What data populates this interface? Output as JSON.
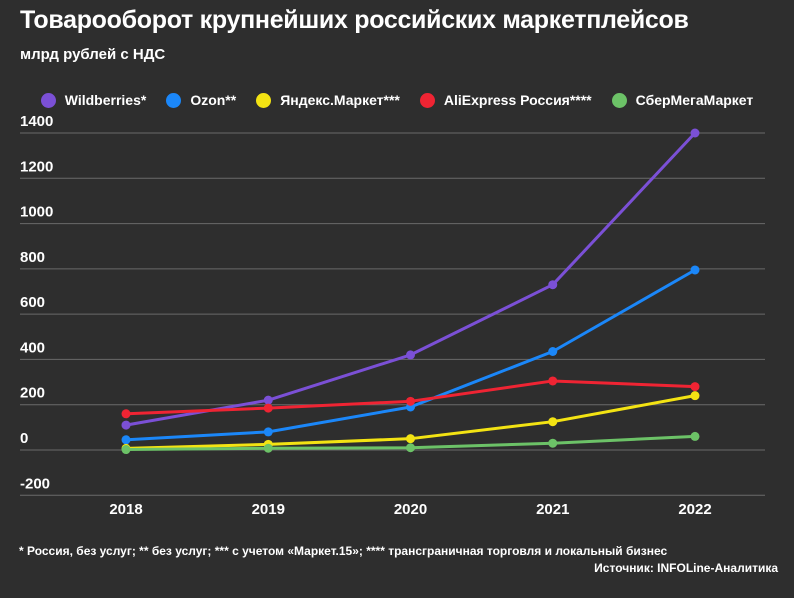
{
  "header": {
    "title": "Товарооборот крупнейших российских маркетплейсов",
    "subtitle": "млрд рублей с НДС"
  },
  "chart_data": {
    "type": "line",
    "title": "Товарооборот крупнейших российских маркетплейсов",
    "subtitle": "млрд рублей с НДС",
    "x": [
      "2018",
      "2019",
      "2020",
      "2021",
      "2022"
    ],
    "series": [
      {
        "name": "Wildberries*",
        "color": "#7b50d6",
        "values": [
          110,
          220,
          420,
          730,
          1400
        ]
      },
      {
        "name": "Ozon**",
        "color": "#1b87f9",
        "values": [
          45,
          80,
          190,
          435,
          795
        ]
      },
      {
        "name": "Яндекс.Маркет***",
        "color": "#f3e313",
        "values": [
          7,
          25,
          50,
          125,
          240
        ]
      },
      {
        "name": "AliExpress Россия****",
        "color": "#ef2433",
        "values": [
          160,
          185,
          215,
          305,
          280
        ]
      },
      {
        "name": "СберМегаМаркет",
        "color": "#6cc267",
        "values": [
          2,
          8,
          10,
          30,
          60
        ]
      }
    ],
    "ylim": [
      -200,
      1400
    ],
    "yticks": [
      1400,
      1200,
      1000,
      800,
      600,
      400,
      200,
      0,
      -200
    ],
    "grid": true,
    "legend_position": "top"
  },
  "footnote": "* Россия, без услуг; ** без услуг; *** с учетом «Маркет.15»; **** трансграничная торговля и локальный бизнес",
  "source": "Источник: INFOLine-Аналитика",
  "colors": {
    "background": "#2e2e2e",
    "text": "#ffffff",
    "gridline": "#6a6a6a"
  }
}
